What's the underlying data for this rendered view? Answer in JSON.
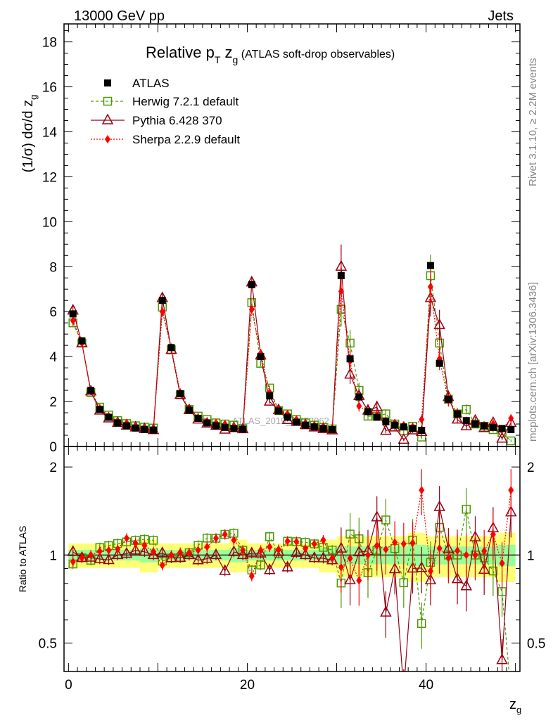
{
  "header": {
    "left": "13000 GeV pp",
    "right": "Jets",
    "title_prefix": "Relative p",
    "title_sub": "T",
    "title_mid": " z",
    "title_sub2": "g",
    "title_suffix": " (ATLAS soft-drop observables)"
  },
  "side_text": {
    "rivet": "Rivet 3.1.10, ≥ 2.2M events",
    "mcplots": "mcplots.cern.ch [arXiv:1306.3436]"
  },
  "watermark": "ATLAS_2019_I1772062",
  "chart_data": {
    "type": "scatter",
    "title": "Relative pT zg (ATLAS soft-drop observables)",
    "xlabel": "z_g",
    "ylabel_main": "(1/σ) dσ/d z_g",
    "ylabel_ratio": "Ratio to ATLAS",
    "xlim": [
      -0.5,
      50.5
    ],
    "ylim_main": [
      0,
      18.8
    ],
    "ylim_ratio": [
      0.4,
      2.35
    ],
    "xticks_labels": [
      "0",
      "20",
      "40"
    ],
    "yticks_main_labels": [
      "0",
      "2",
      "4",
      "6",
      "8",
      "10",
      "12",
      "14",
      "16",
      "18"
    ],
    "yticks_ratio_labels": [
      "0.5",
      "1",
      "2"
    ],
    "x": [
      0.5,
      1.5,
      2.5,
      3.5,
      4.5,
      5.5,
      6.5,
      7.5,
      8.5,
      9.5,
      10.5,
      11.5,
      12.5,
      13.5,
      14.5,
      15.5,
      16.5,
      17.5,
      18.5,
      19.5,
      20.5,
      21.5,
      22.5,
      23.5,
      24.5,
      25.5,
      26.5,
      27.5,
      28.5,
      29.5,
      30.5,
      31.5,
      32.5,
      33.5,
      34.5,
      35.5,
      36.5,
      37.5,
      38.5,
      39.5,
      40.5,
      41.5,
      42.5,
      43.5,
      44.5,
      45.5,
      46.5,
      47.5,
      48.5,
      49.5
    ],
    "series": [
      {
        "name": "ATLAS",
        "color": "#000000",
        "values": [
          5.9,
          4.7,
          2.5,
          1.65,
          1.3,
          1.05,
          0.92,
          0.82,
          0.76,
          0.73,
          6.5,
          4.4,
          2.35,
          1.62,
          1.25,
          1.05,
          0.92,
          0.85,
          0.8,
          0.77,
          7.2,
          4.0,
          2.25,
          1.58,
          1.3,
          1.08,
          0.95,
          0.87,
          0.8,
          0.75,
          7.6,
          3.9,
          2.2,
          1.55,
          1.3,
          1.1,
          0.95,
          0.87,
          0.8,
          0.72,
          8.05,
          3.7,
          2.1,
          1.45,
          1.15,
          1.0,
          0.92,
          0.85,
          0.8,
          0.75
        ]
      },
      {
        "name": "Herwig 7.2.1 default",
        "color": "#4c9a00",
        "values": [
          5.5,
          4.6,
          2.4,
          1.75,
          1.4,
          1.15,
          1.02,
          0.92,
          0.86,
          0.82,
          6.2,
          4.3,
          2.3,
          1.65,
          1.35,
          1.2,
          1.05,
          1.0,
          0.95,
          0.8,
          6.4,
          3.7,
          2.6,
          1.6,
          1.45,
          1.2,
          1.05,
          0.95,
          0.85,
          0.78,
          6.1,
          4.6,
          2.5,
          1.35,
          1.35,
          1.45,
          1.0,
          0.7,
          0.9,
          0.42,
          7.6,
          4.6,
          2.1,
          1.45,
          1.65,
          1.0,
          0.9,
          0.75,
          0.6,
          0.25
        ]
      },
      {
        "name": "Pythia 6.428 370",
        "color": "#990014",
        "values": [
          6.05,
          4.6,
          2.45,
          1.6,
          1.25,
          1.05,
          0.93,
          0.85,
          0.78,
          0.73,
          6.6,
          4.3,
          2.3,
          1.62,
          1.2,
          1.02,
          0.92,
          0.75,
          0.82,
          0.77,
          7.3,
          4.05,
          2.0,
          1.62,
          1.18,
          1.1,
          0.95,
          0.85,
          0.78,
          0.72,
          8.0,
          3.2,
          2.25,
          1.6,
          1.75,
          0.7,
          0.85,
          0.3,
          0.72,
          0.65,
          6.6,
          5.4,
          2.2,
          1.2,
          0.9,
          1.15,
          0.82,
          1.05,
          0.35,
          1.05
        ]
      },
      {
        "name": "Sherpa 2.2.9 default",
        "color": "#ff0000",
        "values": [
          5.6,
          4.6,
          2.5,
          1.7,
          1.35,
          1.1,
          1.05,
          0.9,
          0.82,
          0.75,
          6.0,
          4.4,
          2.4,
          1.65,
          1.3,
          1.12,
          1.05,
          1.0,
          0.9,
          0.8,
          6.1,
          4.15,
          2.4,
          1.65,
          1.45,
          1.2,
          1.0,
          0.95,
          0.9,
          0.73,
          6.9,
          3.8,
          1.8,
          1.55,
          1.4,
          1.15,
          1.05,
          0.95,
          0.88,
          1.2,
          7.1,
          3.9,
          2.05,
          1.5,
          1.15,
          1.0,
          0.95,
          1.0,
          0.75,
          1.25
        ]
      }
    ]
  },
  "legend": [
    {
      "label": "ATLAS"
    },
    {
      "label": "Herwig 7.2.1 default"
    },
    {
      "label": "Pythia 6.428 370"
    },
    {
      "label": "Sherpa 2.2.9 default"
    }
  ]
}
